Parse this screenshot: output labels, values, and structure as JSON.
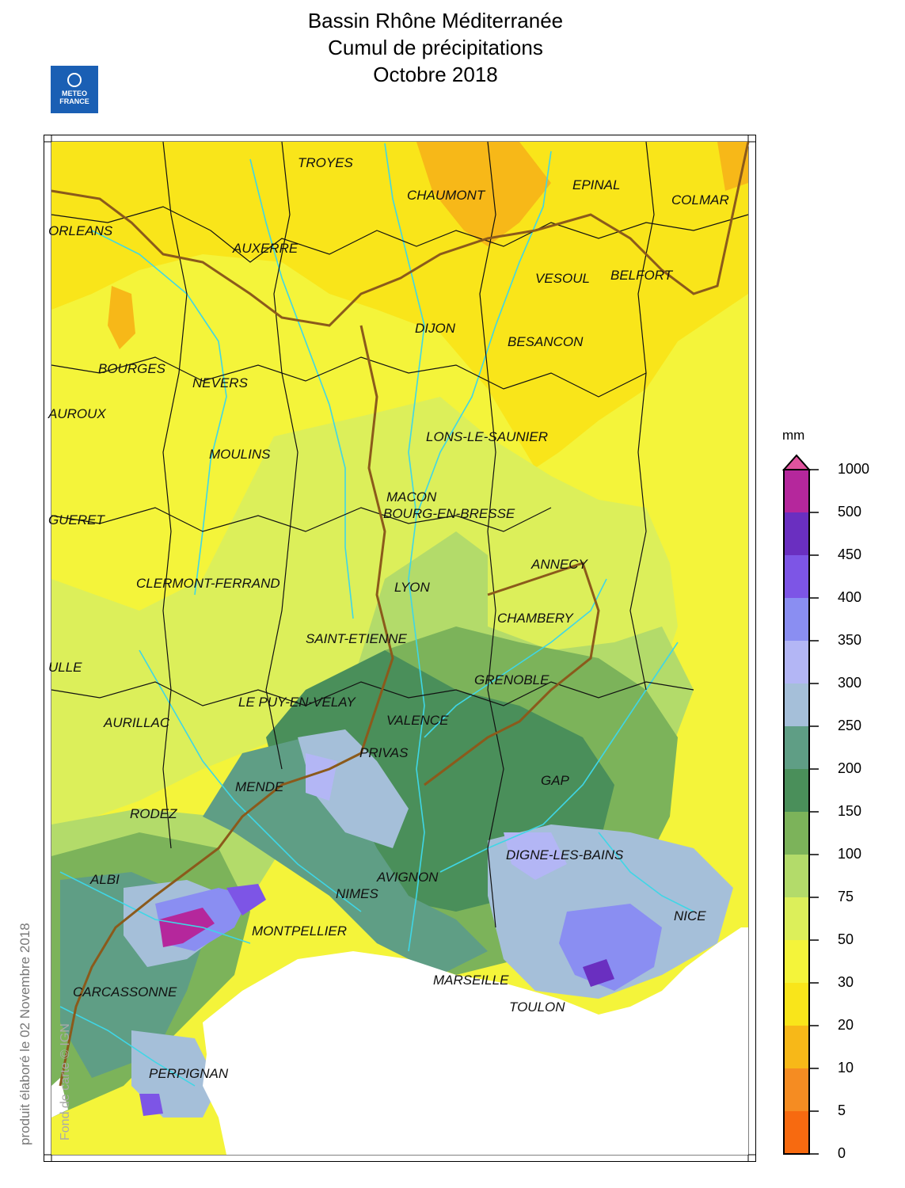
{
  "title": {
    "line1": "Bassin Rhône Méditerranée",
    "line2": "Cumul de précipitations",
    "line3": "Octobre 2018"
  },
  "logo": {
    "line1": "METEO",
    "line2": "FRANCE"
  },
  "side_note": "produit élaboré le 02 Novembre 2018",
  "map_credit": "Fond de carte © IGN",
  "legend": {
    "unit": "mm",
    "ticks": [
      "1000",
      "500",
      "450",
      "400",
      "350",
      "300",
      "250",
      "200",
      "150",
      "100",
      "75",
      "50",
      "30",
      "20",
      "10",
      "5",
      "0"
    ],
    "colors": [
      "#b5279c",
      "#6a2fc0",
      "#7d55e6",
      "#8a8ef2",
      "#b3b6f5",
      "#a5bfd9",
      "#5f9e85",
      "#4a8f5a",
      "#7cb35a",
      "#b3db6a",
      "#dcef5a",
      "#f4f43a",
      "#f9e51a",
      "#f7b818",
      "#f58c22",
      "#f76a10"
    ],
    "top_marker_color": "#e0539e"
  },
  "cities": [
    {
      "name": "TROYES"
    },
    {
      "name": "CHAUMONT"
    },
    {
      "name": "EPINAL"
    },
    {
      "name": "COLMAR"
    },
    {
      "name": "ORLEANS"
    },
    {
      "name": "AUXERRE"
    },
    {
      "name": "VESOUL"
    },
    {
      "name": "BELFORT"
    },
    {
      "name": "DIJON"
    },
    {
      "name": "BESANCON"
    },
    {
      "name": "BOURGES"
    },
    {
      "name": "NEVERS"
    },
    {
      "name": "AUROUX"
    },
    {
      "name": "LONS-LE-SAUNIER"
    },
    {
      "name": "MOULINS"
    },
    {
      "name": "MACON"
    },
    {
      "name": "BOURG-EN-BRESSE"
    },
    {
      "name": "GUERET"
    },
    {
      "name": "ANNECY"
    },
    {
      "name": "CLERMONT-FERRAND"
    },
    {
      "name": "LYON"
    },
    {
      "name": "CHAMBERY"
    },
    {
      "name": "SAINT-ETIENNE"
    },
    {
      "name": "ULLE"
    },
    {
      "name": "GRENOBLE"
    },
    {
      "name": "LE PUY-EN-VELAY"
    },
    {
      "name": "AURILLAC"
    },
    {
      "name": "VALENCE"
    },
    {
      "name": "PRIVAS"
    },
    {
      "name": "GAP"
    },
    {
      "name": "MENDE"
    },
    {
      "name": "RODEZ"
    },
    {
      "name": "DIGNE-LES-BAINS"
    },
    {
      "name": "ALBI"
    },
    {
      "name": "AVIGNON"
    },
    {
      "name": "NIMES"
    },
    {
      "name": "NICE"
    },
    {
      "name": "MONTPELLIER"
    },
    {
      "name": "MARSEILLE"
    },
    {
      "name": "CARCASSONNE"
    },
    {
      "name": "TOULON"
    },
    {
      "name": "PERPIGNAN"
    }
  ]
}
